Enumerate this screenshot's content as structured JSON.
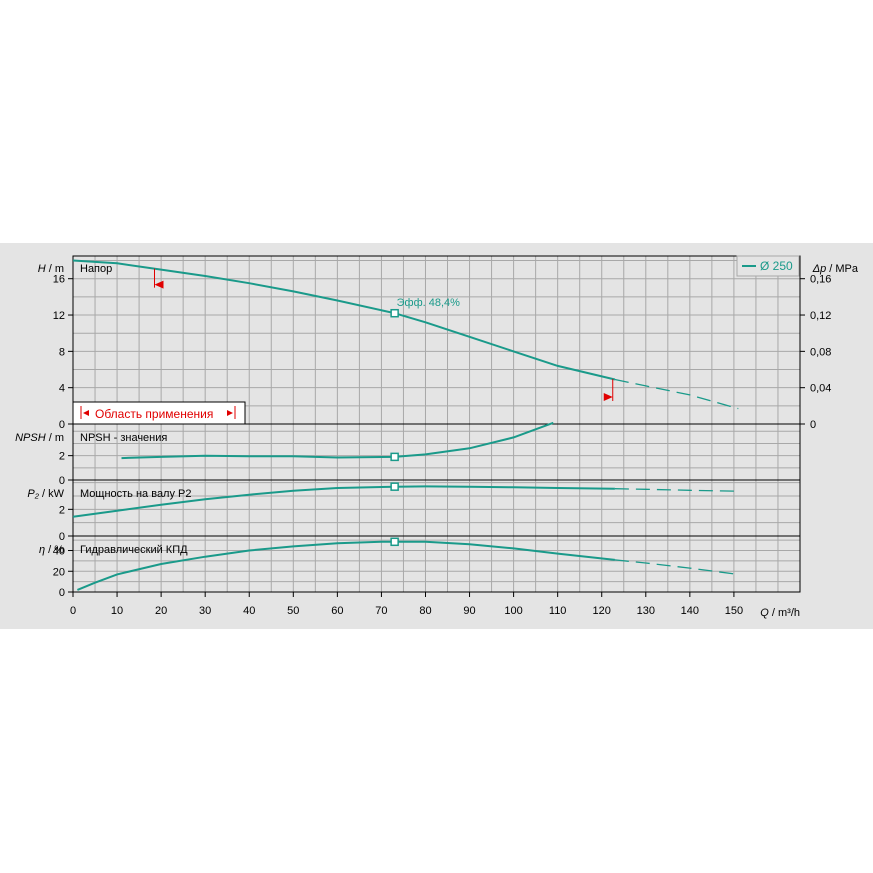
{
  "chart_data": {
    "type": "line",
    "x_axis": {
      "label_var": "Q",
      "label_unit": "m³/h",
      "range": [
        0,
        165
      ],
      "ticks": [
        0,
        10,
        20,
        30,
        40,
        50,
        60,
        70,
        80,
        90,
        100,
        110,
        120,
        130,
        140,
        150
      ]
    },
    "legend": {
      "label": "Ø 250",
      "color": "#1a9a8a",
      "position": "top-right"
    },
    "operating_point_q": 73,
    "panels": {
      "head": {
        "title": "Напор",
        "y_var": "H",
        "y_unit": "m",
        "right_var": "Δp",
        "right_unit": "MPa",
        "y_range": [
          0,
          18.5
        ],
        "y_ticks": [
          0,
          4,
          8,
          12,
          16
        ],
        "right_ticks": [
          "0",
          "0,04",
          "0,08",
          "0,12",
          "0,16"
        ],
        "efficiency_label": "Эфф.  48,4%",
        "application_range_label": "Область применения",
        "application_range": [
          18.5,
          122.5
        ],
        "series_solid": [
          [
            0,
            18
          ],
          [
            10,
            17.7
          ],
          [
            20,
            17.0
          ],
          [
            30,
            16.3
          ],
          [
            40,
            15.5
          ],
          [
            50,
            14.6
          ],
          [
            60,
            13.6
          ],
          [
            73,
            12.2
          ],
          [
            80,
            11.2
          ],
          [
            90,
            9.6
          ],
          [
            100,
            8.0
          ],
          [
            110,
            6.4
          ],
          [
            123,
            4.9
          ]
        ],
        "series_dashed": [
          [
            123,
            4.9
          ],
          [
            130,
            4.2
          ],
          [
            140,
            3.2
          ],
          [
            151,
            1.7
          ]
        ]
      },
      "npsh": {
        "title": "NPSH - значения",
        "y_var": "NPSH",
        "y_unit": "m",
        "y_range": [
          0,
          4.6
        ],
        "y_ticks": [
          0,
          2
        ],
        "series_solid": [
          [
            11,
            1.8
          ],
          [
            20,
            1.9
          ],
          [
            30,
            2.0
          ],
          [
            40,
            1.95
          ],
          [
            50,
            1.95
          ],
          [
            60,
            1.85
          ],
          [
            73,
            1.9
          ],
          [
            80,
            2.1
          ],
          [
            90,
            2.6
          ],
          [
            100,
            3.5
          ],
          [
            109,
            4.7
          ]
        ],
        "series_dashed": []
      },
      "power": {
        "title": "Мощность на валу P2",
        "y_var": "P₂",
        "y_unit": "kW",
        "y_range": [
          0,
          4.2
        ],
        "y_ticks": [
          0,
          2
        ],
        "series_solid": [
          [
            0,
            1.45
          ],
          [
            10,
            1.9
          ],
          [
            20,
            2.35
          ],
          [
            30,
            2.75
          ],
          [
            40,
            3.1
          ],
          [
            50,
            3.4
          ],
          [
            60,
            3.6
          ],
          [
            73,
            3.7
          ],
          [
            80,
            3.72
          ],
          [
            90,
            3.7
          ],
          [
            100,
            3.65
          ],
          [
            110,
            3.6
          ],
          [
            123,
            3.55
          ]
        ],
        "series_dashed": [
          [
            123,
            3.55
          ],
          [
            130,
            3.5
          ],
          [
            140,
            3.43
          ],
          [
            151,
            3.36
          ]
        ]
      },
      "efficiency": {
        "title": "Гидравлический КПД",
        "y_var": "η",
        "y_unit": "%",
        "y_range": [
          0,
          54
        ],
        "y_ticks": [
          0,
          20,
          40
        ],
        "series_solid": [
          [
            1,
            2
          ],
          [
            5,
            9
          ],
          [
            10,
            17
          ],
          [
            20,
            27
          ],
          [
            30,
            34
          ],
          [
            40,
            40
          ],
          [
            50,
            44
          ],
          [
            60,
            47
          ],
          [
            70,
            48.4
          ],
          [
            80,
            48.4
          ],
          [
            90,
            46
          ],
          [
            100,
            42
          ],
          [
            110,
            37
          ],
          [
            123,
            31
          ]
        ],
        "series_dashed": [
          [
            123,
            31
          ],
          [
            130,
            28
          ],
          [
            140,
            23
          ],
          [
            151,
            17
          ]
        ]
      }
    }
  }
}
